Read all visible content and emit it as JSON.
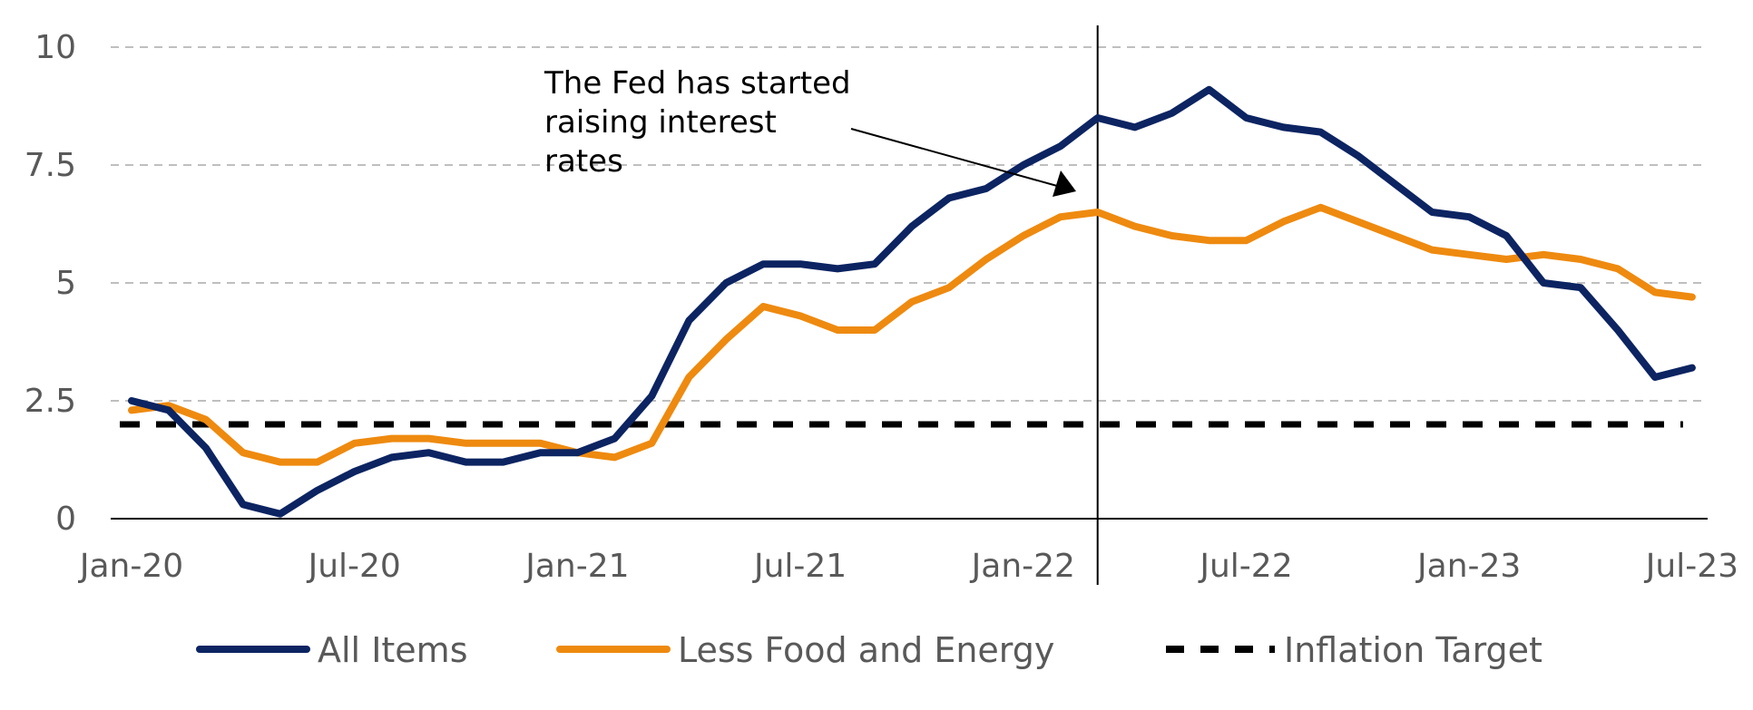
{
  "chart_data": {
    "type": "line",
    "x": [
      "Jan-20",
      "Feb-20",
      "Mar-20",
      "Apr-20",
      "May-20",
      "Jun-20",
      "Jul-20",
      "Aug-20",
      "Sep-20",
      "Oct-20",
      "Nov-20",
      "Dec-20",
      "Jan-21",
      "Feb-21",
      "Mar-21",
      "Apr-21",
      "May-21",
      "Jun-21",
      "Jul-21",
      "Aug-21",
      "Sep-21",
      "Oct-21",
      "Nov-21",
      "Dec-21",
      "Jan-22",
      "Feb-22",
      "Mar-22",
      "Apr-22",
      "May-22",
      "Jun-22",
      "Jul-22",
      "Aug-22",
      "Sep-22",
      "Oct-22",
      "Nov-22",
      "Dec-22",
      "Jan-23",
      "Feb-23",
      "Mar-23",
      "Apr-23",
      "May-23",
      "Jun-23",
      "Jul-23"
    ],
    "x_tick_labels": [
      "Jan-20",
      "Jul-20",
      "Jan-21",
      "Jul-21",
      "Jan-22",
      "Jul-22",
      "Jan-23",
      "Jul-23"
    ],
    "y_tick_labels": [
      "0",
      "2.5",
      "5",
      "7.5",
      "10"
    ],
    "ylim": [
      0,
      10
    ],
    "grid": "horizontal dashed",
    "legend_position": "bottom",
    "series": [
      {
        "name": "All Items",
        "color": "#0c2461",
        "style": "solid",
        "values": [
          2.5,
          2.3,
          1.5,
          0.3,
          0.1,
          0.6,
          1.0,
          1.3,
          1.4,
          1.2,
          1.2,
          1.4,
          1.4,
          1.7,
          2.6,
          4.2,
          5.0,
          5.4,
          5.4,
          5.3,
          5.4,
          6.2,
          6.8,
          7.0,
          7.5,
          7.9,
          8.5,
          8.3,
          8.6,
          9.1,
          8.5,
          8.3,
          8.2,
          7.7,
          7.1,
          6.5,
          6.4,
          6.0,
          5.0,
          4.9,
          4.0,
          3.0,
          3.2
        ]
      },
      {
        "name": "Less Food and Energy",
        "color": "#ee8a0f",
        "style": "solid",
        "values": [
          2.3,
          2.4,
          2.1,
          1.4,
          1.2,
          1.2,
          1.6,
          1.7,
          1.7,
          1.6,
          1.6,
          1.6,
          1.4,
          1.3,
          1.6,
          3.0,
          3.8,
          4.5,
          4.3,
          4.0,
          4.0,
          4.6,
          4.9,
          5.5,
          6.0,
          6.4,
          6.5,
          6.2,
          6.0,
          5.9,
          5.9,
          6.3,
          6.6,
          6.3,
          6.0,
          5.7,
          5.6,
          5.5,
          5.6,
          5.5,
          5.3,
          4.8,
          4.7
        ]
      },
      {
        "name": "Inflation Target",
        "color": "#000000",
        "style": "dashed",
        "values": [
          2,
          2,
          2,
          2,
          2,
          2,
          2,
          2,
          2,
          2,
          2,
          2,
          2,
          2,
          2,
          2,
          2,
          2,
          2,
          2,
          2,
          2,
          2,
          2,
          2,
          2,
          2,
          2,
          2,
          2,
          2,
          2,
          2,
          2,
          2,
          2,
          2,
          2,
          2,
          2,
          2,
          2,
          2
        ]
      }
    ],
    "marker_line_at": "Mar-22",
    "annotation": {
      "lines": [
        "The Fed has started",
        "raising interest",
        "rates"
      ],
      "points_to": "Mar-22"
    }
  }
}
